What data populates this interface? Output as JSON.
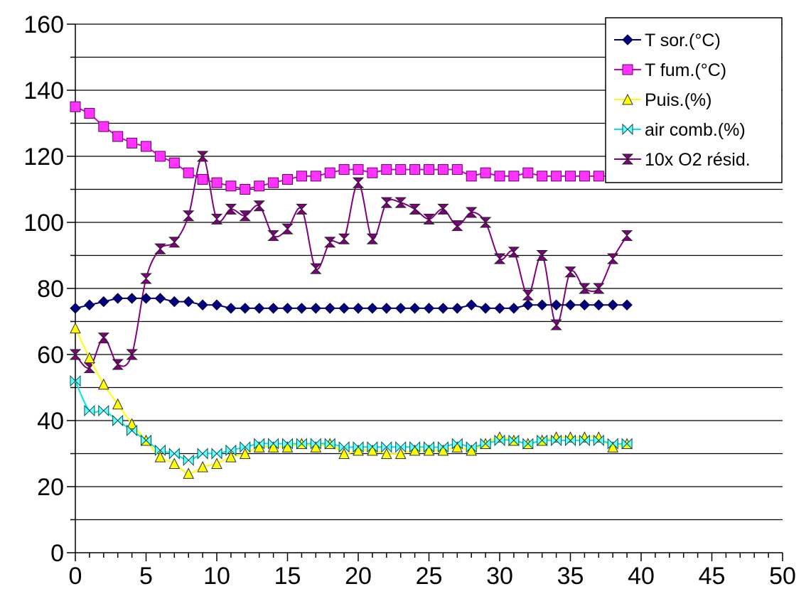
{
  "chart_data": {
    "type": "line",
    "title": "",
    "xlabel": "",
    "ylabel": "",
    "xlim": [
      0,
      50
    ],
    "ylim": [
      0,
      160
    ],
    "x_ticks": [
      0,
      5,
      10,
      15,
      20,
      25,
      30,
      35,
      40,
      45,
      50
    ],
    "y_ticks": [
      0,
      20,
      40,
      60,
      80,
      100,
      120,
      140,
      160
    ],
    "y_minor_step": 10,
    "x_minor_step": 1,
    "grid": "horizontal",
    "legend_position": "top-right",
    "x": [
      0,
      1,
      2,
      3,
      4,
      5,
      6,
      7,
      8,
      9,
      10,
      11,
      12,
      13,
      14,
      15,
      16,
      17,
      18,
      19,
      20,
      21,
      22,
      23,
      24,
      25,
      26,
      27,
      28,
      29,
      30,
      31,
      32,
      33,
      34,
      35,
      36,
      37,
      38,
      39
    ],
    "series": [
      {
        "name": "T sor.(°C)",
        "color": "#000080",
        "marker_fill": "#000080",
        "marker": "diamond",
        "smooth": false,
        "values": [
          74,
          75,
          76,
          77,
          77,
          77,
          77,
          76,
          76,
          75,
          75,
          74,
          74,
          74,
          74,
          74,
          74,
          74,
          74,
          74,
          74,
          74,
          74,
          74,
          74,
          74,
          74,
          74,
          75,
          74,
          74,
          74,
          75,
          75,
          75,
          75,
          75,
          75,
          75,
          75
        ]
      },
      {
        "name": "T fum.(°C)",
        "color": "#cc00cc",
        "marker_fill": "#ff33ff",
        "marker": "square",
        "smooth": false,
        "values": [
          135,
          133,
          129,
          126,
          124,
          123,
          120,
          118,
          115,
          113,
          112,
          111,
          110,
          111,
          112,
          113,
          114,
          114,
          115,
          116,
          116,
          115,
          116,
          116,
          116,
          116,
          116,
          116,
          114,
          115,
          114,
          114,
          115,
          114,
          114,
          114,
          114,
          114,
          114,
          114
        ]
      },
      {
        "name": "Puis.(%)",
        "color": "#ffff00",
        "marker_fill": "#ffff00",
        "marker": "triangle",
        "smooth": true,
        "values": [
          68,
          59,
          51,
          45,
          39,
          34,
          29,
          27,
          24,
          26,
          27,
          29,
          30,
          32,
          32,
          32,
          33,
          32,
          33,
          30,
          31,
          31,
          30,
          30,
          31,
          31,
          31,
          32,
          31,
          33,
          35,
          34,
          33,
          34,
          35,
          35,
          35,
          35,
          32,
          33
        ]
      },
      {
        "name": "air comb.(%)",
        "color": "#00e5e5",
        "marker_fill": "#66ffff",
        "marker": "bowtie",
        "smooth": true,
        "values": [
          52,
          43,
          43,
          40,
          37,
          34,
          31,
          30,
          28,
          30,
          30,
          31,
          32,
          33,
          33,
          33,
          33,
          33,
          33,
          32,
          32,
          32,
          32,
          32,
          32,
          32,
          32,
          33,
          32,
          33,
          34,
          34,
          33,
          34,
          34,
          34,
          34,
          34,
          33,
          33
        ]
      },
      {
        "name": "10x O2 résid.",
        "color": "#800080",
        "marker_fill": "#800080",
        "marker": "hourglass",
        "smooth": true,
        "values": [
          60,
          56,
          65,
          57,
          60,
          83,
          92,
          94,
          102,
          120,
          101,
          104,
          102,
          105,
          96,
          98,
          104,
          86,
          94,
          95,
          112,
          95,
          106,
          106,
          104,
          101,
          104,
          99,
          103,
          100,
          89,
          91,
          78,
          90,
          69,
          85,
          80,
          80,
          89,
          96
        ]
      }
    ]
  }
}
